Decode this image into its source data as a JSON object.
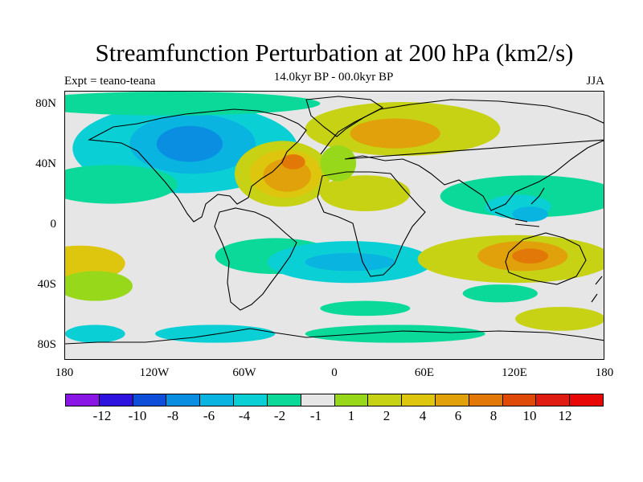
{
  "title": "Streamfunction Perturbation at 200 hPa (km2/s)",
  "left_label": "Expt = teano-teana",
  "center_label": "14.0kyr BP - 00.0kyr BP",
  "right_label": "JJA",
  "y_axis": {
    "ticks": [
      "80N",
      "40N",
      "0",
      "40S",
      "80S"
    ]
  },
  "x_axis": {
    "ticks": [
      "180",
      "120W",
      "60W",
      "0",
      "60E",
      "120E",
      "180"
    ]
  },
  "colorbar": {
    "colors": [
      "#8a16e6",
      "#2e12de",
      "#0f4ed8",
      "#0a8ee2",
      "#09b4e0",
      "#0ad0d6",
      "#0bd99a",
      "#e6e6e6",
      "#97d81b",
      "#c7d214",
      "#dec60e",
      "#e0a10a",
      "#e27808",
      "#e04a08",
      "#e01c12",
      "#e80707"
    ],
    "labels": [
      "-12",
      "-10",
      "-8",
      "-6",
      "-4",
      "-2",
      "-1",
      "1",
      "2",
      "4",
      "6",
      "8",
      "10",
      "12"
    ]
  },
  "field": {
    "background": "#e6e6e6",
    "blobs": [
      {
        "lon": -100,
        "lat": 52,
        "rx": 75,
        "ry": 30,
        "fill": "#0ad0d6"
      },
      {
        "lon": -95,
        "lat": 55,
        "rx": 42,
        "ry": 20,
        "fill": "#09b4e0"
      },
      {
        "lon": -97,
        "lat": 55,
        "rx": 22,
        "ry": 12,
        "fill": "#0a8ee2"
      },
      {
        "lon": -150,
        "lat": 28,
        "rx": 45,
        "ry": 13,
        "fill": "#0bd99a"
      },
      {
        "lon": -110,
        "lat": 82,
        "rx": 100,
        "ry": 8,
        "fill": "#0bd99a"
      },
      {
        "lon": -35,
        "lat": 35,
        "rx": 32,
        "ry": 22,
        "fill": "#c7d214"
      },
      {
        "lon": -33,
        "lat": 35,
        "rx": 24,
        "ry": 16,
        "fill": "#dec60e"
      },
      {
        "lon": -32,
        "lat": 34,
        "rx": 16,
        "ry": 11,
        "fill": "#e0a10a"
      },
      {
        "lon": -28,
        "lat": 43,
        "rx": 8,
        "ry": 5,
        "fill": "#e27808"
      },
      {
        "lon": 45,
        "lat": 65,
        "rx": 65,
        "ry": 18,
        "fill": "#c7d214"
      },
      {
        "lon": 40,
        "lat": 62,
        "rx": 30,
        "ry": 10,
        "fill": "#e0a10a"
      },
      {
        "lon": 20,
        "lat": 22,
        "rx": 30,
        "ry": 12,
        "fill": "#c7d214"
      },
      {
        "lon": 2,
        "lat": 42,
        "rx": 12,
        "ry": 12,
        "fill": "#97d81b"
      },
      {
        "lon": 130,
        "lat": 20,
        "rx": 60,
        "ry": 14,
        "fill": "#0bd99a"
      },
      {
        "lon": 122,
        "lat": 13,
        "rx": 22,
        "ry": 8,
        "fill": "#0ad0d6"
      },
      {
        "lon": 130,
        "lat": 8,
        "rx": 12,
        "ry": 5,
        "fill": "#09b4e0"
      },
      {
        "lon": -40,
        "lat": -20,
        "rx": 40,
        "ry": 12,
        "fill": "#0bd99a"
      },
      {
        "lon": 10,
        "lat": -24,
        "rx": 55,
        "ry": 14,
        "fill": "#0ad0d6"
      },
      {
        "lon": 10,
        "lat": -24,
        "rx": 30,
        "ry": 6,
        "fill": "#09b4e0"
      },
      {
        "lon": 120,
        "lat": -22,
        "rx": 65,
        "ry": 16,
        "fill": "#c7d214"
      },
      {
        "lon": 125,
        "lat": -20,
        "rx": 30,
        "ry": 10,
        "fill": "#e0a10a"
      },
      {
        "lon": 130,
        "lat": -20,
        "rx": 12,
        "ry": 5,
        "fill": "#e27808"
      },
      {
        "lon": -170,
        "lat": -25,
        "rx": 30,
        "ry": 12,
        "fill": "#dec60e"
      },
      {
        "lon": -160,
        "lat": -40,
        "rx": 25,
        "ry": 10,
        "fill": "#97d81b"
      },
      {
        "lon": 20,
        "lat": -55,
        "rx": 30,
        "ry": 5,
        "fill": "#0bd99a"
      },
      {
        "lon": 110,
        "lat": -45,
        "rx": 25,
        "ry": 6,
        "fill": "#0bd99a"
      },
      {
        "lon": 150,
        "lat": -62,
        "rx": 30,
        "ry": 8,
        "fill": "#c7d214"
      },
      {
        "lon": 40,
        "lat": -72,
        "rx": 60,
        "ry": 6,
        "fill": "#0bd99a"
      },
      {
        "lon": -80,
        "lat": -72,
        "rx": 40,
        "ry": 6,
        "fill": "#0ad0d6"
      },
      {
        "lon": -160,
        "lat": -72,
        "rx": 20,
        "ry": 6,
        "fill": "#0ad0d6"
      }
    ]
  }
}
